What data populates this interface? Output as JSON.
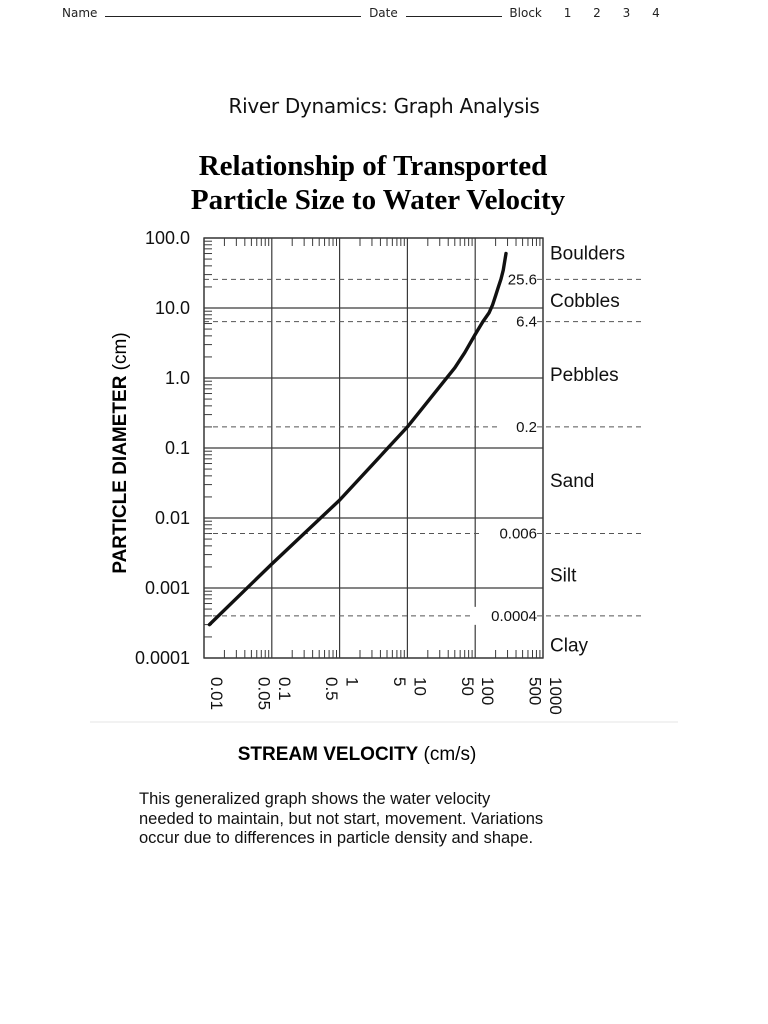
{
  "header": {
    "name_label": "Name",
    "date_label": "Date",
    "block_label": "Block",
    "blocks": [
      "1",
      "2",
      "3",
      "4"
    ]
  },
  "worksheet_title": "River Dynamics: Graph Analysis",
  "caption": [
    "This generalized graph shows the water velocity",
    "needed to maintain, but not start, movement. Variations",
    "occur due to differences in particle density and  shape."
  ],
  "chart_data": {
    "type": "line",
    "title_lines": [
      "Relationship of Transported",
      "Particle Size to Water Velocity"
    ],
    "xlabel_bold": "STREAM VELOCITY",
    "xlabel_unit": " (cm/s)",
    "ylabel_bold": "PARTICLE DIAMETER",
    "ylabel_unit": " (cm)",
    "x_scale": "log",
    "y_scale": "log",
    "xlim": [
      0.01,
      1000
    ],
    "ylim": [
      0.0001,
      100
    ],
    "x_tick_labels": [
      {
        "value": 0.01,
        "label": "0.01"
      },
      {
        "value": 0.05,
        "label": "0.05"
      },
      {
        "value": 0.1,
        "label": "0.1"
      },
      {
        "value": 0.5,
        "label": "0.5"
      },
      {
        "value": 1,
        "label": "1"
      },
      {
        "value": 5,
        "label": "5"
      },
      {
        "value": 10,
        "label": "10"
      },
      {
        "value": 50,
        "label": "50"
      },
      {
        "value": 100,
        "label": "100"
      },
      {
        "value": 500,
        "label": "500"
      },
      {
        "value": 1000,
        "label": "1000"
      }
    ],
    "y_tick_labels": [
      {
        "value": 100,
        "label": "100.0"
      },
      {
        "value": 10,
        "label": "10.0"
      },
      {
        "value": 1,
        "label": "1.0"
      },
      {
        "value": 0.1,
        "label": "0.1"
      },
      {
        "value": 0.01,
        "label": "0.01"
      },
      {
        "value": 0.001,
        "label": "0.001"
      },
      {
        "value": 0.0001,
        "label": "0.0001"
      }
    ],
    "boundaries": [
      {
        "value": 25.6,
        "label": "25.6"
      },
      {
        "value": 6.4,
        "label": "6.4"
      },
      {
        "value": 0.2,
        "label": "0.2"
      },
      {
        "value": 0.006,
        "label": "0.006"
      },
      {
        "value": 0.0004,
        "label": "0.0004"
      }
    ],
    "classes": [
      {
        "label": "Boulders",
        "y": 60
      },
      {
        "label": "Cobbles",
        "y": 12.6
      },
      {
        "label": "Pebbles",
        "y": 1.1
      },
      {
        "label": "Sand",
        "y": 0.034
      },
      {
        "label": "Silt",
        "y": 0.0015
      },
      {
        "label": "Clay",
        "y": 0.00015
      }
    ],
    "series": [
      {
        "x": [
          0.012,
          0.1,
          1,
          10,
          50,
          70,
          100,
          130,
          160,
          180,
          200,
          220,
          240,
          260,
          285
        ],
        "y": [
          0.0003,
          0.0022,
          0.018,
          0.2,
          1.4,
          2.3,
          4.2,
          6.4,
          8.5,
          11,
          15,
          20,
          26,
          35,
          60
        ]
      }
    ],
    "grid": true,
    "colors": {
      "line": "#111111",
      "grid": "#3a3a3a",
      "dashed": "#555555"
    }
  }
}
